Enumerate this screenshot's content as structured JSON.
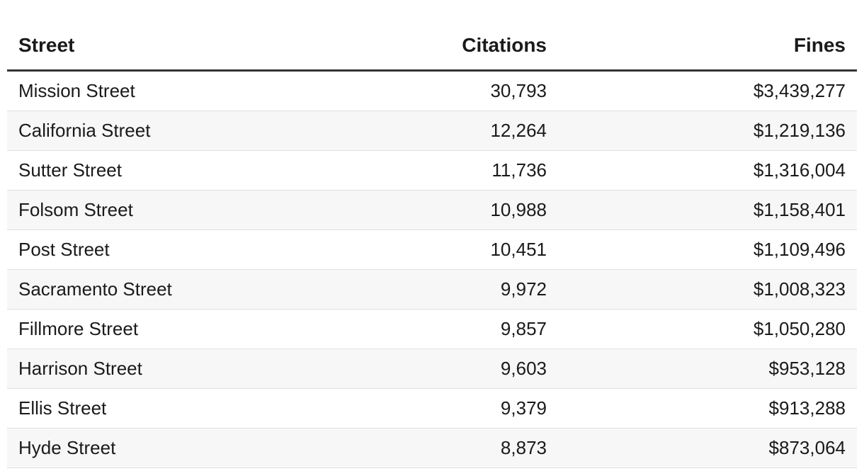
{
  "table": {
    "header": [
      "Street",
      "Citations",
      "Fines"
    ],
    "rows": [
      [
        "Mission Street",
        "30,793",
        "$3,439,277"
      ],
      [
        "California Street",
        "12,264",
        "$1,219,136"
      ],
      [
        "Sutter Street",
        "11,736",
        "$1,316,004"
      ],
      [
        "Folsom Street",
        "10,988",
        "$1,158,401"
      ],
      [
        "Post Street",
        "10,451",
        "$1,109,496"
      ],
      [
        "Sacramento Street",
        "9,972",
        "$1,008,323"
      ],
      [
        "Fillmore Street",
        "9,857",
        "$1,050,280"
      ],
      [
        "Harrison Street",
        "9,603",
        "$953,128"
      ],
      [
        "Ellis Street",
        "9,379",
        "$913,288"
      ],
      [
        "Hyde Street",
        "8,873",
        "$873,064"
      ]
    ]
  }
}
